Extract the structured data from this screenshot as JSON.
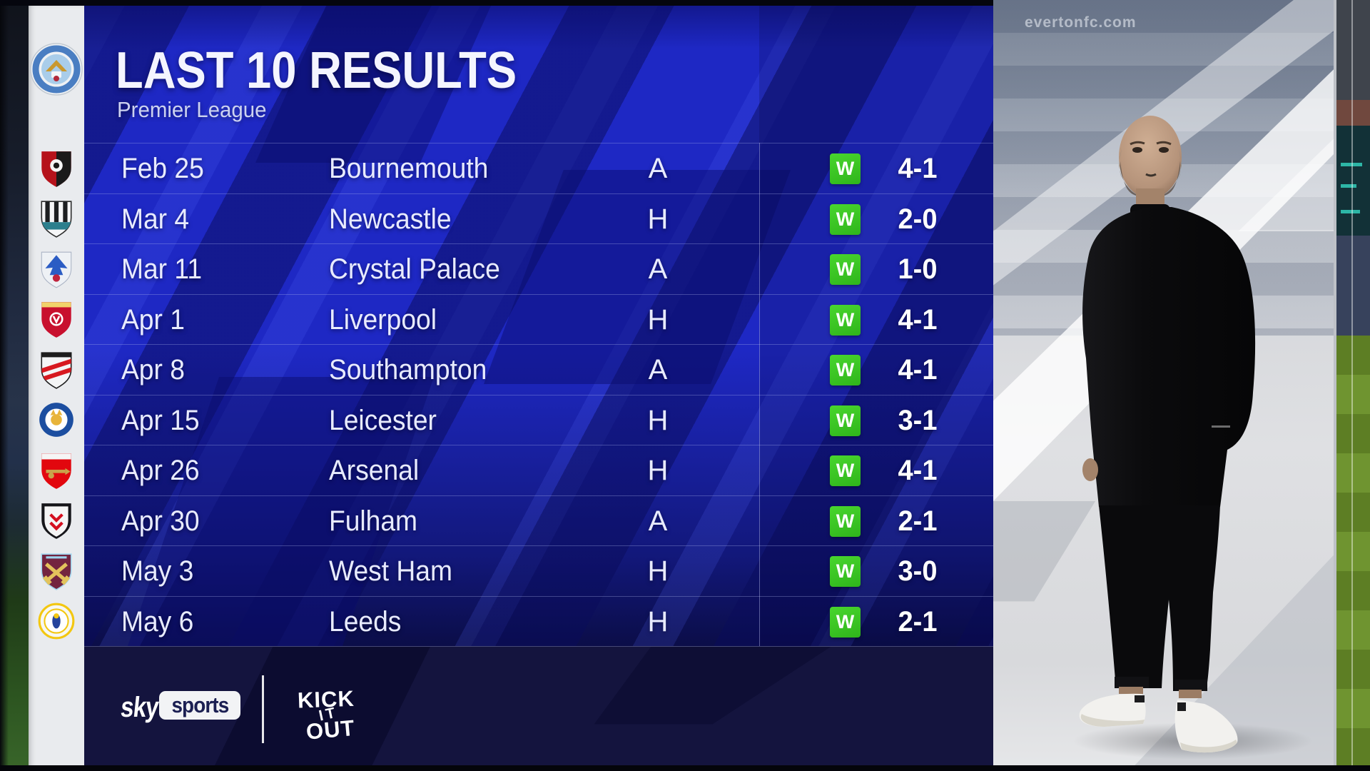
{
  "header": {
    "title": "LAST 10 RESULTS",
    "subtitle": "Premier League"
  },
  "club": {
    "name": "Manchester City"
  },
  "results": [
    {
      "date": "Feb 25",
      "opponent": "Bournemouth",
      "venue": "A",
      "result": "W",
      "score": "4-1",
      "badge": {
        "id": "bournemouth",
        "style": "split",
        "colors": [
          "#b5121b",
          "#1a1a1a",
          "#f5f5f5"
        ]
      }
    },
    {
      "date": "Mar 4",
      "opponent": "Newcastle",
      "venue": "H",
      "result": "W",
      "score": "2-0",
      "badge": {
        "id": "newcastle",
        "style": "stripes",
        "colors": [
          "#f5f6f7",
          "#1d1f21",
          "#2b7f8d"
        ]
      }
    },
    {
      "date": "Mar 11",
      "opponent": "Crystal Palace",
      "venue": "A",
      "result": "W",
      "score": "1-0",
      "badge": {
        "id": "crystal-palace",
        "style": "eagle",
        "colors": [
          "#eef1f5",
          "#2b5cc4",
          "#c0233d"
        ]
      }
    },
    {
      "date": "Apr 1",
      "opponent": "Liverpool",
      "venue": "H",
      "result": "W",
      "score": "4-1",
      "badge": {
        "id": "liverpool",
        "style": "crest",
        "colors": [
          "#c8102e",
          "#f1d36a",
          "#ffffff"
        ]
      }
    },
    {
      "date": "Apr 8",
      "opponent": "Southampton",
      "venue": "A",
      "result": "W",
      "score": "4-1",
      "badge": {
        "id": "southampton",
        "style": "sash",
        "colors": [
          "#f4f5f6",
          "#d71920",
          "#1d1d1d"
        ]
      }
    },
    {
      "date": "Apr 15",
      "opponent": "Leicester",
      "venue": "H",
      "result": "W",
      "score": "3-1",
      "badge": {
        "id": "leicester",
        "style": "circle",
        "colors": [
          "#1c4ea0",
          "#ffffff",
          "#e8b43a"
        ]
      }
    },
    {
      "date": "Apr 26",
      "opponent": "Arsenal",
      "venue": "H",
      "result": "W",
      "score": "4-1",
      "badge": {
        "id": "arsenal",
        "style": "cannon",
        "colors": [
          "#e2070e",
          "#f5f5f5",
          "#c9a24b"
        ]
      }
    },
    {
      "date": "Apr 30",
      "opponent": "Fulham",
      "venue": "A",
      "result": "W",
      "score": "2-1",
      "badge": {
        "id": "fulham",
        "style": "chevron",
        "colors": [
          "#16161a",
          "#f5f5f5",
          "#d40f1f"
        ]
      }
    },
    {
      "date": "May 3",
      "opponent": "West Ham",
      "venue": "H",
      "result": "W",
      "score": "3-0",
      "badge": {
        "id": "west-ham",
        "style": "hammers",
        "colors": [
          "#73243f",
          "#9fd4ee",
          "#e3c35c"
        ]
      }
    },
    {
      "date": "May 6",
      "opponent": "Leeds",
      "venue": "H",
      "result": "W",
      "score": "2-1",
      "badge": {
        "id": "leeds",
        "style": "rose",
        "colors": [
          "#f7f7f2",
          "#f3c711",
          "#24439c"
        ]
      }
    }
  ],
  "footer": {
    "sky": "sky",
    "sports": "sports",
    "kick_it_out": [
      "KICK",
      "IT",
      "OUT"
    ]
  },
  "photo": {
    "watermark": "evertonfc.com"
  },
  "colors": {
    "panel_blue": "#1e28c4",
    "panel_dark": "#14143e",
    "win_green": "#3ecb27",
    "row_text": "#e8ebff",
    "rail_bg": "#e9ebee",
    "photo_grey": "#d2d4d8",
    "city_sky_blue": "#a9cdea"
  }
}
